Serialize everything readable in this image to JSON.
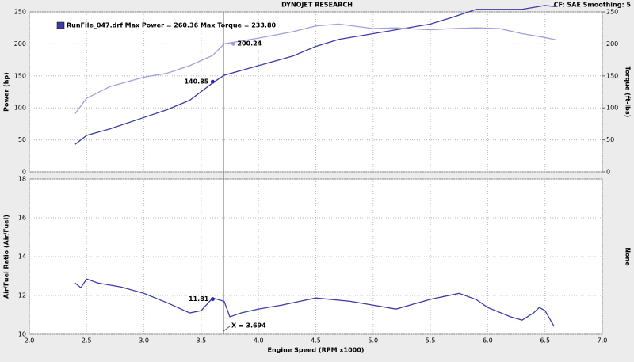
{
  "chart_data": [
    {
      "type": "line",
      "title": "DYNOJET RESEARCH",
      "subtitle": "CF: SAE   Smoothing: 5",
      "legend": "RunFile_047.drf Max Power = 260.36 Max Torque = 233.80",
      "ylabel": "Power (hp)",
      "y2label": "Torque (ft-lbs)",
      "xlim": [
        2,
        7
      ],
      "ylim": [
        0,
        250
      ],
      "yticks": [
        0,
        50,
        100,
        150,
        200,
        250
      ],
      "y2lim": [
        0,
        250
      ],
      "y2ticks": [
        0,
        50,
        100,
        150,
        200,
        250
      ],
      "grid": true,
      "x": [
        2.4,
        2.5,
        2.7,
        3.0,
        3.2,
        3.4,
        3.6,
        3.7,
        4.0,
        4.3,
        4.5,
        4.7,
        5.0,
        5.2,
        5.5,
        5.7,
        5.9,
        6.1,
        6.3,
        6.5,
        6.6
      ],
      "series": [
        {
          "color": "#3b3ba6",
          "values": [
            43,
            57,
            67,
            85,
            97,
            112,
            139,
            151,
            166,
            181,
            196,
            207,
            216,
            222,
            231,
            242,
            254,
            254,
            254,
            260,
            258
          ]
        },
        {
          "color": "#a0a0dc",
          "axis": "y2",
          "values": [
            91,
            115,
            133,
            148,
            154,
            166,
            182,
            200,
            209,
            219,
            228,
            231,
            224,
            225,
            222,
            224,
            225,
            224,
            216,
            210,
            206
          ]
        }
      ],
      "markers": [
        {
          "x": 3.6,
          "y": 140.85
        },
        {
          "x": 3.78,
          "y": 200.24,
          "axis": "y2"
        }
      ]
    },
    {
      "type": "line",
      "ylabel": "Air/Fuel Ratio (Air/Fuel)",
      "y2label": "None",
      "xlabel": "Engine Speed (RPM x1000)",
      "xlim": [
        2,
        7
      ],
      "ylim": [
        10,
        18
      ],
      "yticks": [
        10,
        12,
        14,
        16,
        18
      ],
      "grid": true,
      "xticks": [
        {
          "value": 2,
          "label": "2.0"
        },
        2.5,
        {
          "value": 3,
          "label": "3.0"
        },
        3.5,
        {
          "value": 4,
          "label": "4.0"
        },
        4.5,
        {
          "value": 5,
          "label": "5.0"
        },
        5.5,
        {
          "value": 6,
          "label": "6.0"
        },
        6.5,
        {
          "value": 7,
          "label": "7.0"
        }
      ],
      "x": [
        2.4,
        2.45,
        2.5,
        2.6,
        2.8,
        3.0,
        3.2,
        3.4,
        3.5,
        3.6,
        3.7,
        3.75,
        3.85,
        4.0,
        4.2,
        4.5,
        4.8,
        5.0,
        5.2,
        5.5,
        5.75,
        5.9,
        6.0,
        6.2,
        6.3,
        6.4,
        6.45,
        6.5,
        6.58
      ],
      "series": [
        {
          "color": "#3b3ba6",
          "values": [
            12.64,
            12.4,
            12.85,
            12.64,
            12.44,
            12.11,
            11.63,
            11.1,
            11.22,
            11.87,
            11.7,
            10.9,
            11.1,
            11.3,
            11.5,
            11.87,
            11.7,
            11.5,
            11.3,
            11.8,
            12.11,
            11.79,
            11.38,
            10.9,
            10.73,
            11.1,
            11.38,
            11.22,
            10.4
          ]
        }
      ],
      "markers": [
        {
          "x": 3.6,
          "y": 11.81
        }
      ],
      "cursor": {
        "value": 3.694,
        "label": "X = 3.694"
      }
    }
  ]
}
